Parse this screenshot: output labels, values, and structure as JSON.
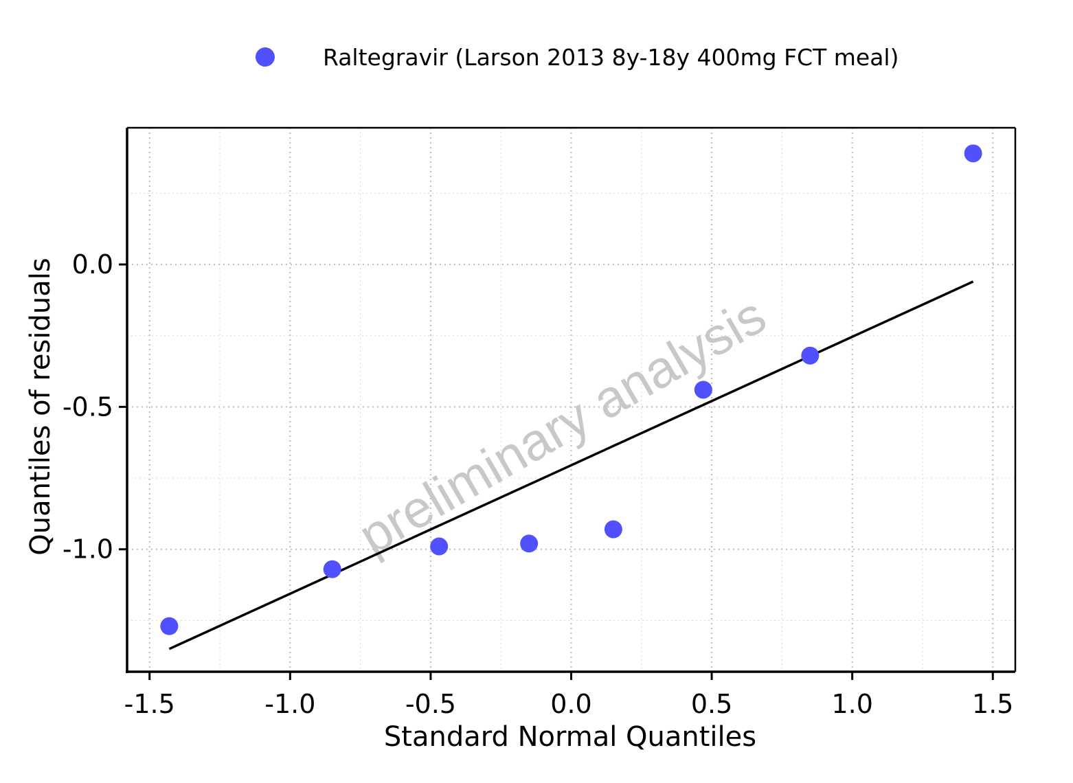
{
  "chart_data": {
    "type": "scatter",
    "title": "",
    "xlabel": "Standard Normal Quantiles",
    "ylabel": "Quantiles of residuals",
    "xlim": [
      -1.58,
      1.58
    ],
    "ylim": [
      -1.43,
      0.48
    ],
    "xticks": [
      -1.5,
      -1.0,
      -0.5,
      0.0,
      0.5,
      1.0,
      1.5
    ],
    "xtick_labels": [
      "-1.5",
      "-1.0",
      "-0.5",
      "0.0",
      "0.5",
      "1.0",
      "1.5"
    ],
    "yticks": [
      -1.0,
      -0.5,
      0.0
    ],
    "ytick_labels": [
      "-1.0",
      "-0.5",
      "0.0"
    ],
    "minor_xticks": [
      -1.25,
      -0.75,
      -0.25,
      0.25,
      0.75,
      1.25
    ],
    "minor_yticks": [
      -1.25,
      -0.75,
      -0.25,
      0.25
    ],
    "grid": true,
    "legend_position": "top",
    "series": [
      {
        "name": "Raltegravir (Larson 2013 8y-18y 400mg FCT meal)",
        "color": "#5050ff",
        "marker": "circle",
        "x": [
          -1.43,
          -0.85,
          -0.47,
          -0.15,
          0.15,
          0.47,
          0.85,
          1.43
        ],
        "y": [
          -1.27,
          -1.07,
          -0.99,
          -0.98,
          -0.93,
          -0.44,
          -0.32,
          0.39
        ]
      }
    ],
    "reference_line": {
      "x": [
        -1.43,
        1.43
      ],
      "y": [
        -1.35,
        -0.06
      ],
      "color": "#000000"
    },
    "watermark": "preliminary analysis"
  }
}
